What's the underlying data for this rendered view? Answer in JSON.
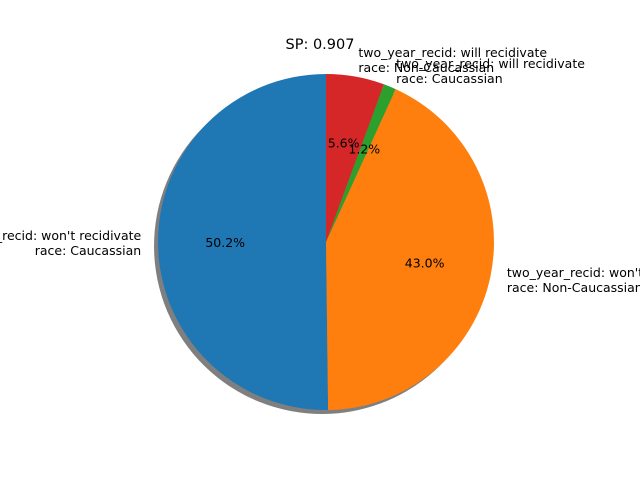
{
  "chart_data": {
    "type": "pie",
    "title": "SP: 0.907",
    "start_angle_deg": 90,
    "direction": "counterclockwise",
    "shadow": true,
    "slices": [
      {
        "label_lines": [
          "two_year_recid: won't recidivate",
          "race: Caucassian"
        ],
        "value": 50.2,
        "pct_label": "50.2%",
        "color": "#1f77b4"
      },
      {
        "label_lines": [
          "two_year_recid: won't recidivate",
          "race: Non-Caucassian"
        ],
        "value": 43.0,
        "pct_label": "43.0%",
        "color": "#ff7f0e"
      },
      {
        "label_lines": [
          "two_year_recid: will recidivate",
          "race: Caucassian"
        ],
        "value": 1.2,
        "pct_label": "1.2%",
        "color": "#2ca02c"
      },
      {
        "label_lines": [
          "two_year_recid: will recidivate",
          "race: Non-Caucassian"
        ],
        "value": 5.6,
        "pct_label": "5.6%",
        "color": "#d62728"
      }
    ]
  }
}
